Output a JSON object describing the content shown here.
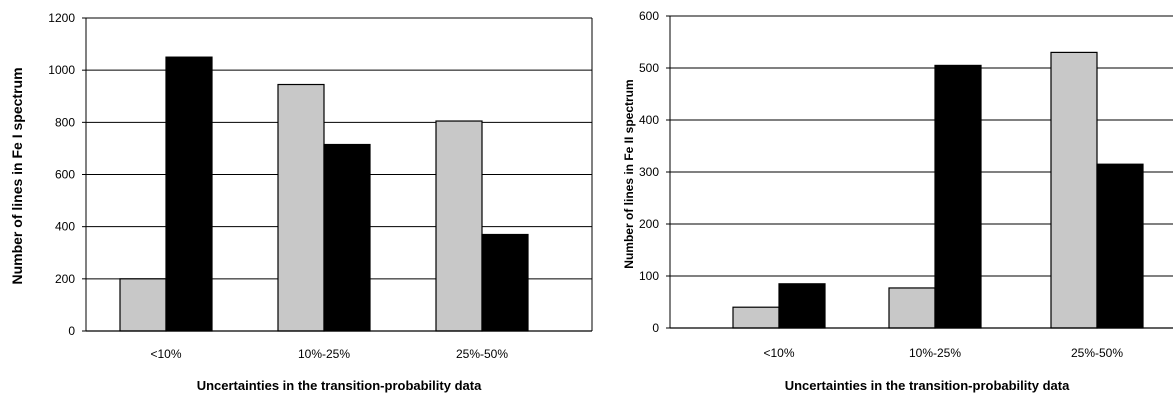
{
  "chart_data": [
    {
      "type": "bar",
      "categories": [
        "<10%",
        "10%-25%",
        "25%-50%"
      ],
      "series": [
        {
          "values": [
            200,
            945,
            805
          ]
        },
        {
          "values": [
            1050,
            715,
            370
          ]
        }
      ],
      "xlabel": "Uncertainties in the transition-probability data",
      "ylabel": "Number of lines in Fe I spectrum",
      "ylim": [
        0,
        1200
      ],
      "yticks": [
        0,
        200,
        400,
        600,
        800,
        1000,
        1200
      ],
      "grid": true,
      "colors": [
        "#c8c8c8",
        "#000000"
      ]
    },
    {
      "type": "bar",
      "categories": [
        "<10%",
        "10%-25%",
        "25%-50%"
      ],
      "series": [
        {
          "values": [
            40,
            77,
            530
          ]
        },
        {
          "values": [
            85,
            505,
            315
          ]
        }
      ],
      "xlabel": "Uncertainties in the transition-probability data",
      "ylabel": "Number of lines in Fe II spectrum",
      "ylim": [
        0,
        600
      ],
      "yticks": [
        0,
        100,
        200,
        300,
        400,
        500,
        600
      ],
      "grid": true,
      "colors": [
        "#c8c8c8",
        "#000000"
      ]
    }
  ]
}
